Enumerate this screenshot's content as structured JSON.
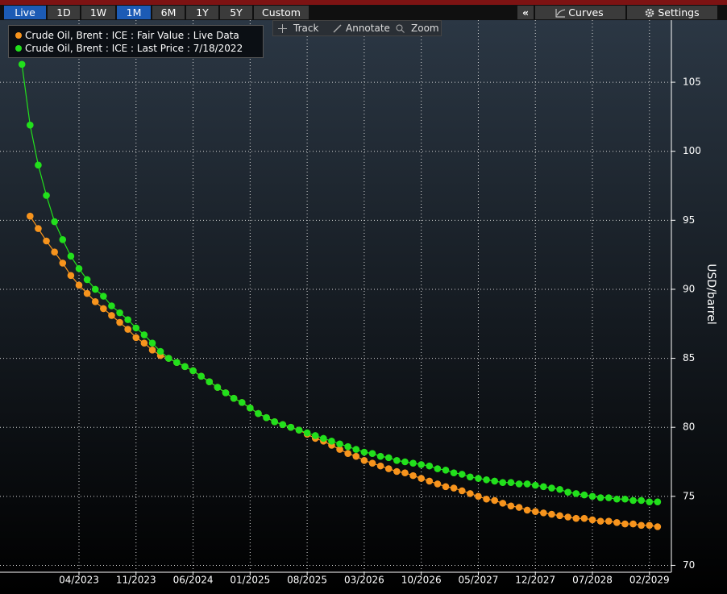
{
  "toolbar": {
    "ranges": [
      "Live",
      "1D",
      "1W",
      "1M",
      "6M",
      "1Y",
      "5Y",
      "Custom"
    ],
    "collapse": "«",
    "curves": "Curves",
    "settings": "Settings"
  },
  "chart_tools": [
    "Track",
    "Annotate",
    "Zoom"
  ],
  "chart_data": {
    "type": "line",
    "y_label": "USD/barrel",
    "x": [
      "09/2022",
      "10/2022",
      "11/2022",
      "12/2022",
      "01/2023",
      "02/2023",
      "03/2023",
      "04/2023",
      "05/2023",
      "06/2023",
      "07/2023",
      "08/2023",
      "09/2023",
      "10/2023",
      "11/2023",
      "12/2023",
      "01/2024",
      "02/2024",
      "03/2024",
      "04/2024",
      "05/2024",
      "06/2024",
      "07/2024",
      "08/2024",
      "09/2024",
      "10/2024",
      "11/2024",
      "12/2024",
      "01/2025",
      "02/2025",
      "03/2025",
      "04/2025",
      "05/2025",
      "06/2025",
      "07/2025",
      "08/2025",
      "09/2025",
      "10/2025",
      "11/2025",
      "12/2025",
      "01/2026",
      "02/2026",
      "03/2026",
      "04/2026",
      "05/2026",
      "06/2026",
      "07/2026",
      "08/2026",
      "09/2026",
      "10/2026",
      "11/2026",
      "12/2026",
      "01/2027",
      "02/2027",
      "03/2027",
      "04/2027",
      "05/2027",
      "06/2027",
      "07/2027",
      "08/2027",
      "09/2027",
      "10/2027",
      "11/2027",
      "12/2027",
      "01/2028",
      "02/2028",
      "03/2028",
      "04/2028",
      "05/2028",
      "06/2028",
      "07/2028",
      "08/2028",
      "09/2028",
      "10/2028",
      "11/2028",
      "12/2028",
      "01/2029",
      "02/2029",
      "03/2029"
    ],
    "series": [
      {
        "name": "Crude Oil, Brent : ICE : Fair Value : Live Data",
        "color": "#f7941d",
        "values": [
          null,
          95.3,
          94.4,
          93.5,
          92.7,
          91.9,
          91.0,
          90.3,
          89.7,
          89.1,
          88.6,
          88.1,
          87.6,
          87.1,
          86.5,
          86.1,
          85.6,
          85.2,
          85.0,
          84.7,
          84.4,
          84.1,
          83.7,
          83.3,
          82.9,
          82.5,
          82.1,
          81.8,
          81.4,
          81.0,
          80.7,
          80.4,
          80.2,
          80.0,
          79.8,
          79.5,
          79.2,
          79.0,
          78.7,
          78.4,
          78.1,
          77.9,
          77.6,
          77.4,
          77.2,
          77.0,
          76.8,
          76.7,
          76.5,
          76.3,
          76.1,
          75.9,
          75.7,
          75.6,
          75.4,
          75.2,
          75.0,
          74.8,
          74.7,
          74.5,
          74.3,
          74.2,
          74.0,
          73.9,
          73.8,
          73.7,
          73.6,
          73.5,
          73.4,
          73.4,
          73.3,
          73.2,
          73.2,
          73.1,
          73.0,
          73.0,
          72.9,
          72.9,
          72.8
        ]
      },
      {
        "name": "Crude Oil, Brent : ICE : Last Price : 7/18/2022",
        "color": "#22e01c",
        "values": [
          106.3,
          101.9,
          99.0,
          96.8,
          94.9,
          93.6,
          92.4,
          91.5,
          90.7,
          90.0,
          89.5,
          88.8,
          88.3,
          87.8,
          87.2,
          86.7,
          86.1,
          85.5,
          85.0,
          84.7,
          84.4,
          84.1,
          83.7,
          83.3,
          82.9,
          82.5,
          82.1,
          81.8,
          81.4,
          81.0,
          80.7,
          80.4,
          80.2,
          80.0,
          79.8,
          79.6,
          79.4,
          79.2,
          79.0,
          78.8,
          78.6,
          78.4,
          78.2,
          78.1,
          77.9,
          77.8,
          77.6,
          77.5,
          77.4,
          77.3,
          77.2,
          77.0,
          76.9,
          76.7,
          76.6,
          76.4,
          76.3,
          76.2,
          76.1,
          76.0,
          76.0,
          75.9,
          75.9,
          75.8,
          75.7,
          75.6,
          75.5,
          75.3,
          75.2,
          75.1,
          75.0,
          74.9,
          74.9,
          74.8,
          74.8,
          74.7,
          74.7,
          74.6,
          74.6
        ]
      }
    ],
    "xlim": [
      "07/2022",
      "04/2029"
    ],
    "xticks": [
      "04/2023",
      "11/2023",
      "06/2024",
      "01/2025",
      "08/2025",
      "03/2026",
      "10/2026",
      "05/2027",
      "12/2027",
      "07/2028",
      "02/2029"
    ],
    "ylim": [
      69.5,
      109.5
    ],
    "yticks": [
      70,
      75,
      80,
      85,
      90,
      95,
      100,
      105
    ],
    "y_axis_side": "right",
    "grid": true
  }
}
